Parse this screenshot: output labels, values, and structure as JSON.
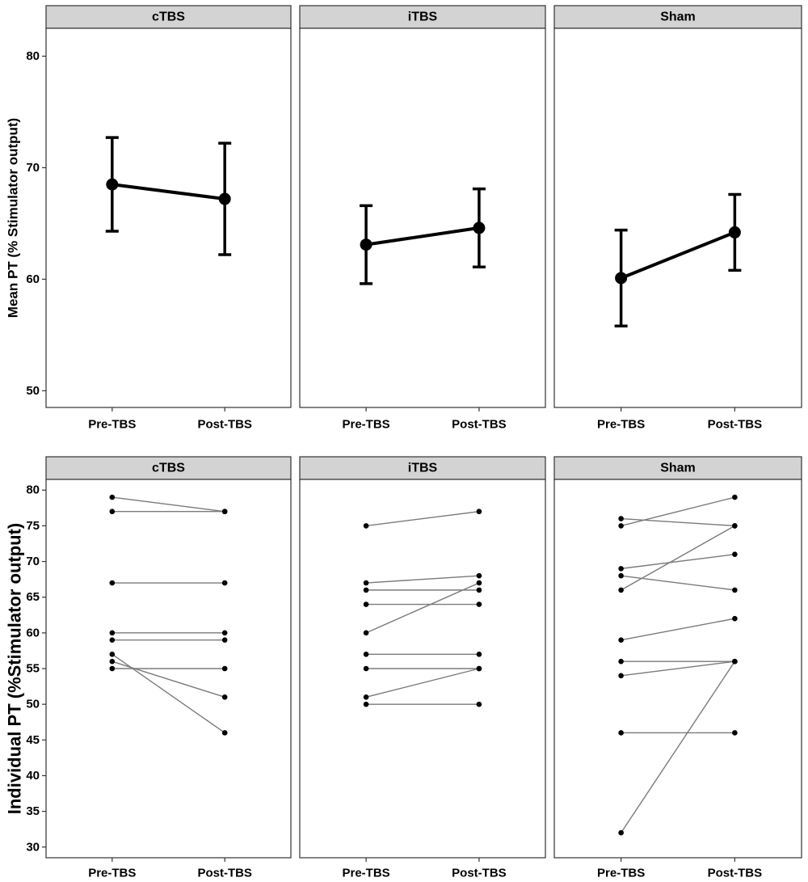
{
  "chart_data": [
    {
      "type": "line",
      "ylabel": "Mean PT (% Stimulator output)",
      "ylim": [
        48.5,
        82.5
      ],
      "yticks": [
        50,
        60,
        70,
        80
      ],
      "categories": [
        "Pre-TBS",
        "Post-TBS"
      ],
      "grid": false,
      "panels": [
        {
          "strip": "cTBS",
          "mean": [
            68.5,
            67.2
          ],
          "lower": [
            64.3,
            62.2
          ],
          "upper": [
            72.7,
            72.2
          ]
        },
        {
          "strip": "iTBS",
          "mean": [
            63.1,
            64.6
          ],
          "lower": [
            59.6,
            61.1
          ],
          "upper": [
            66.6,
            68.1
          ]
        },
        {
          "strip": "Sham",
          "mean": [
            60.1,
            64.2
          ],
          "lower": [
            55.8,
            60.8
          ],
          "upper": [
            64.4,
            67.6
          ]
        }
      ]
    },
    {
      "type": "line",
      "ylabel": "Individual PT (%Stimulator output)",
      "ylim": [
        28.5,
        81.5
      ],
      "yticks": [
        30,
        35,
        40,
        45,
        50,
        55,
        60,
        65,
        70,
        75,
        80
      ],
      "categories": [
        "Pre-TBS",
        "Post-TBS"
      ],
      "grid": false,
      "panels": [
        {
          "strip": "cTBS",
          "pairs": [
            [
              79,
              77
            ],
            [
              77,
              77
            ],
            [
              67,
              67
            ],
            [
              60,
              60
            ],
            [
              59,
              59
            ],
            [
              57,
              46
            ],
            [
              56,
              51
            ],
            [
              55,
              55
            ]
          ]
        },
        {
          "strip": "iTBS",
          "pairs": [
            [
              75,
              77
            ],
            [
              67,
              68
            ],
            [
              66,
              66
            ],
            [
              64,
              64
            ],
            [
              60,
              67
            ],
            [
              57,
              57
            ],
            [
              55,
              55
            ],
            [
              51,
              55
            ],
            [
              50,
              50
            ]
          ]
        },
        {
          "strip": "Sham",
          "pairs": [
            [
              76,
              75
            ],
            [
              75,
              79
            ],
            [
              69,
              71
            ],
            [
              68,
              66
            ],
            [
              66,
              75
            ],
            [
              59,
              62
            ],
            [
              56,
              56
            ],
            [
              54,
              56
            ],
            [
              46,
              46
            ],
            [
              32,
              56
            ]
          ]
        }
      ]
    }
  ]
}
